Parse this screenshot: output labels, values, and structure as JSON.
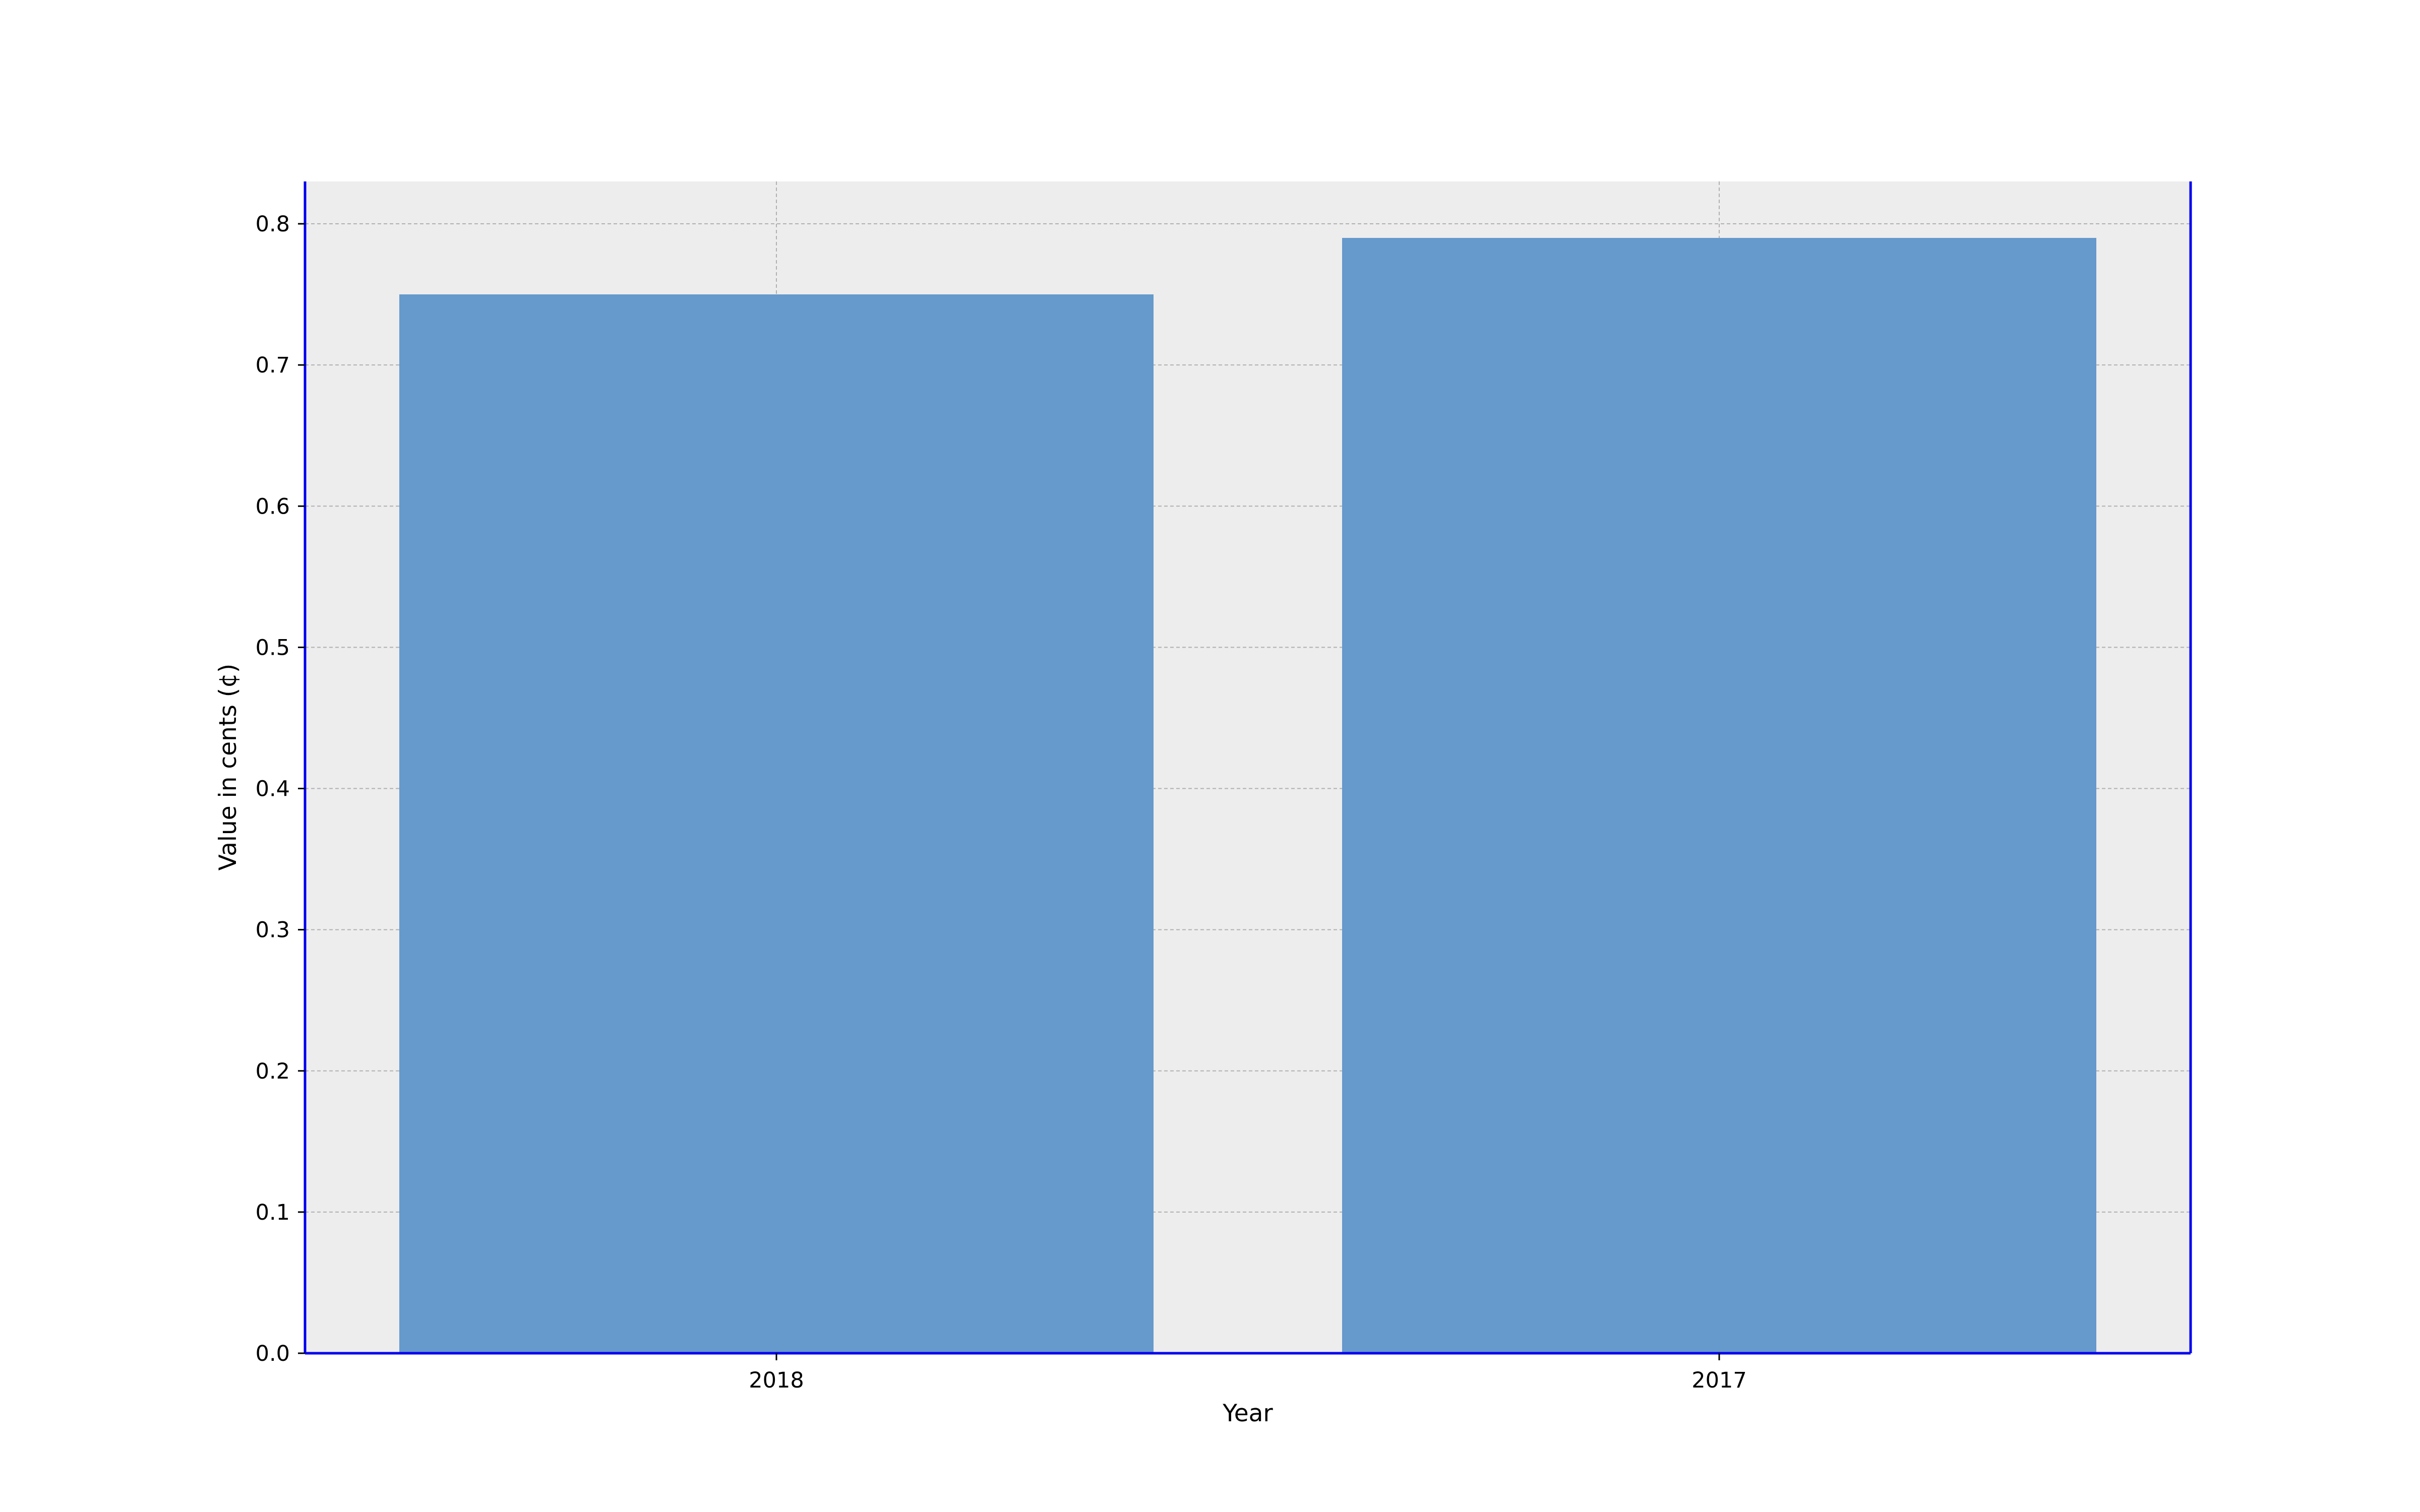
{
  "chart_data": {
    "type": "bar",
    "categories": [
      "2018",
      "2017"
    ],
    "values": [
      0.75,
      0.79
    ],
    "title": "",
    "xlabel": "Year",
    "ylabel": "Value in cents (¢)",
    "ylim": [
      0,
      0.83
    ],
    "yticks": [
      "0.0",
      "0.1",
      "0.2",
      "0.3",
      "0.4",
      "0.5",
      "0.6",
      "0.7",
      "0.8"
    ],
    "grid": true,
    "legend": "none",
    "colors": {
      "bar": "#6699cc",
      "plot_background": "#ededed",
      "axes_spine": "#0000ee",
      "grid": "#b0b0b0"
    }
  }
}
